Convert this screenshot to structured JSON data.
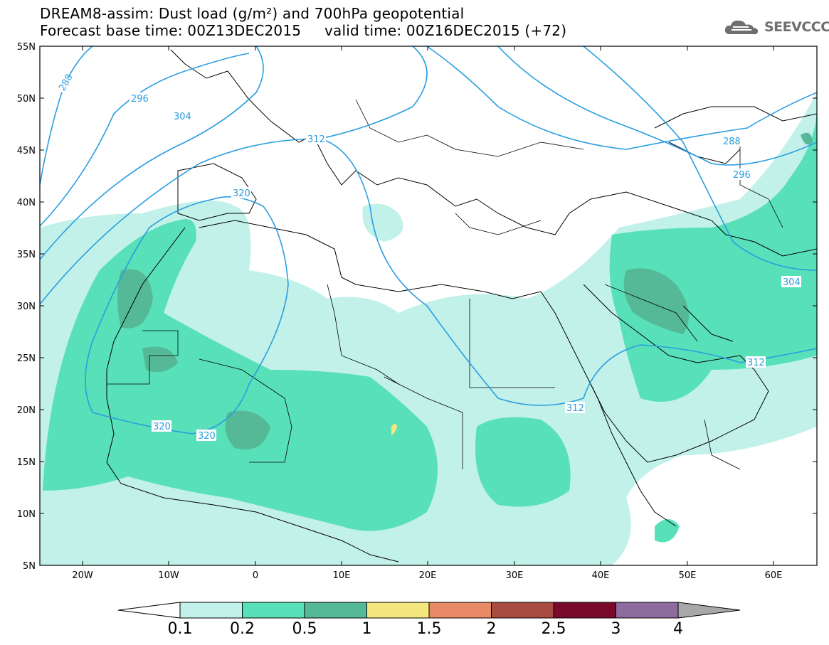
{
  "header": {
    "title_line1": "DREAM8-assim: Dust load (g/m²) and 700hPa geopotential",
    "title_line2": "Forecast base time: 00Z13DEC2015     valid time: 00Z16DEC2015 (+72)",
    "logo_text": "SEEVCCC"
  },
  "map": {
    "lat_ticks": [
      "55N",
      "50N",
      "45N",
      "40N",
      "35N",
      "30N",
      "25N",
      "20N",
      "15N",
      "10N",
      "5N"
    ],
    "lon_ticks": [
      "20W",
      "10W",
      "0",
      "10E",
      "20E",
      "30E",
      "40E",
      "50E",
      "60E"
    ],
    "isolines": [
      "288",
      "296",
      "304",
      "312",
      "320",
      "320",
      "320",
      "312",
      "288",
      "296",
      "304",
      "312"
    ]
  },
  "colorbar": {
    "labels": [
      "0.1",
      "0.2",
      "0.5",
      "1",
      "1.5",
      "2",
      "2.5",
      "3",
      "4"
    ],
    "colors": [
      "#ffffff",
      "#c2f1ea",
      "#58e0b8",
      "#55b896",
      "#f5e77d",
      "#e98a66",
      "#a84b40",
      "#7a0a2b",
      "#8e6b9e",
      "#a8a8a8"
    ]
  }
}
